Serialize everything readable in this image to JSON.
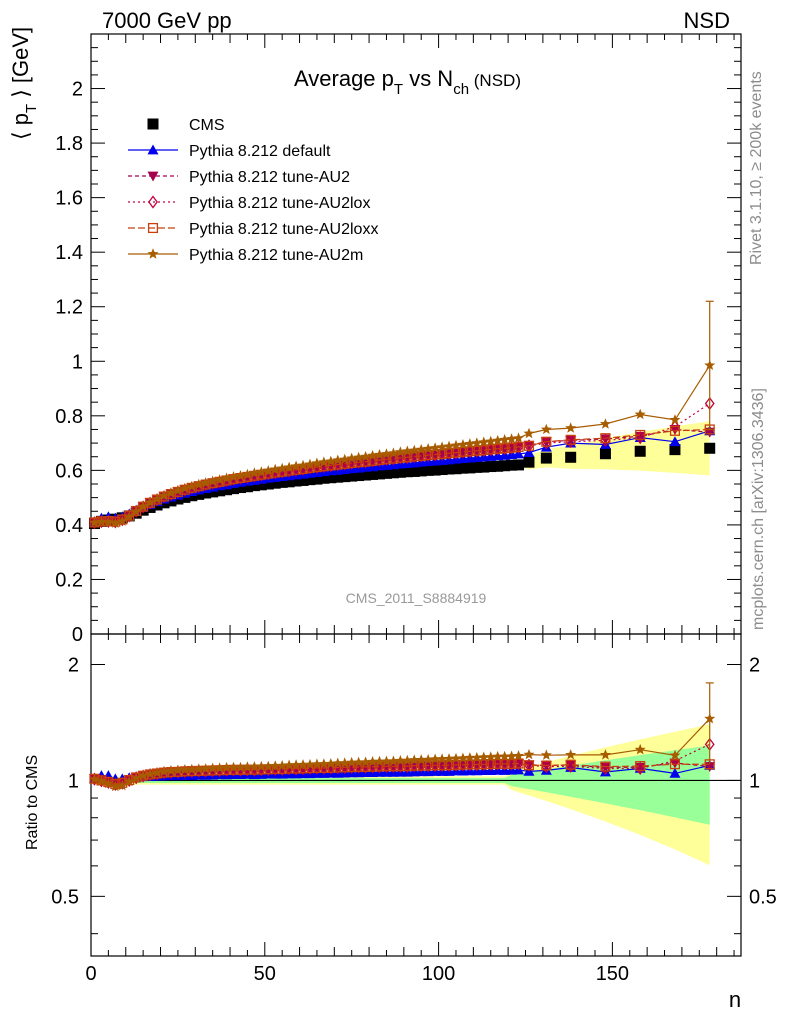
{
  "header": {
    "left": "7000 GeV pp",
    "right": "NSD"
  },
  "side_labels": {
    "top": "Rivet 3.1.10, ≥ 200k events",
    "bottom": "mcplots.cern.ch [arXiv:1306.3436]"
  },
  "watermark": "CMS_2011_S8884919",
  "chart_data": [
    {
      "type": "scatter",
      "title": {
        "main": "Average p",
        "sub1": "T",
        "mid": " vs N",
        "sub2": "ch",
        "tail": " (NSD)"
      },
      "ylabel": {
        "open": "⟨ p",
        "sub": "T",
        "close": " ⟩ [GeV]"
      },
      "xlim": [
        0,
        187
      ],
      "ylim": [
        0,
        2.2
      ],
      "yticks": [
        0,
        0.2,
        0.4,
        0.6,
        0.8,
        1,
        1.2,
        1.4,
        1.6,
        1.8,
        2
      ],
      "legend_position": "top-left",
      "series": [
        {
          "name": "CMS",
          "color": "#000000",
          "marker": "square",
          "x": [
            1,
            3,
            5,
            7,
            9,
            11,
            13,
            15,
            17,
            19,
            21,
            23,
            25,
            27,
            29,
            31,
            33,
            35,
            37,
            39,
            41,
            43,
            45,
            47,
            49,
            51,
            53,
            55,
            57,
            59,
            61,
            63,
            65,
            67,
            69,
            71,
            73,
            75,
            77,
            79,
            81,
            83,
            85,
            87,
            89,
            91,
            93,
            95,
            97,
            99,
            101,
            103,
            105,
            107,
            109,
            111,
            113,
            115,
            117,
            119,
            121,
            123,
            126,
            131,
            138,
            148,
            158,
            168,
            178
          ],
          "y": [
            0.405,
            0.413,
            0.418,
            0.421,
            0.426,
            0.433,
            0.443,
            0.454,
            0.464,
            0.473,
            0.481,
            0.488,
            0.495,
            0.501,
            0.507,
            0.512,
            0.517,
            0.521,
            0.525,
            0.529,
            0.533,
            0.537,
            0.54,
            0.544,
            0.547,
            0.55,
            0.553,
            0.556,
            0.558,
            0.561,
            0.563,
            0.566,
            0.568,
            0.571,
            0.573,
            0.575,
            0.577,
            0.579,
            0.581,
            0.583,
            0.585,
            0.587,
            0.589,
            0.591,
            0.593,
            0.595,
            0.596,
            0.598,
            0.6,
            0.601,
            0.603,
            0.605,
            0.606,
            0.608,
            0.609,
            0.611,
            0.612,
            0.614,
            0.615,
            0.617,
            0.619,
            0.62,
            0.63,
            0.645,
            0.648,
            0.661,
            0.67,
            0.676,
            0.681
          ]
        },
        {
          "name": "Pythia 8.212 default",
          "color": "#0000ee",
          "marker": "triangle-up",
          "x": [
            1,
            3,
            5,
            7,
            9,
            11,
            13,
            15,
            17,
            19,
            21,
            23,
            25,
            27,
            29,
            31,
            33,
            35,
            37,
            39,
            41,
            43,
            45,
            47,
            49,
            51,
            53,
            55,
            57,
            59,
            61,
            63,
            65,
            67,
            69,
            71,
            73,
            75,
            77,
            79,
            81,
            83,
            85,
            87,
            89,
            91,
            93,
            95,
            97,
            99,
            101,
            103,
            105,
            107,
            109,
            111,
            113,
            115,
            117,
            119,
            121,
            123,
            126,
            131,
            138,
            148,
            158,
            168,
            178
          ],
          "y": [
            0.41,
            0.425,
            0.43,
            0.425,
            0.43,
            0.44,
            0.452,
            0.464,
            0.475,
            0.485,
            0.494,
            0.502,
            0.509,
            0.516,
            0.522,
            0.528,
            0.533,
            0.538,
            0.543,
            0.547,
            0.552,
            0.556,
            0.56,
            0.563,
            0.567,
            0.571,
            0.574,
            0.577,
            0.58,
            0.583,
            0.586,
            0.589,
            0.592,
            0.595,
            0.598,
            0.6,
            0.603,
            0.606,
            0.608,
            0.611,
            0.613,
            0.616,
            0.618,
            0.62,
            0.623,
            0.625,
            0.627,
            0.63,
            0.632,
            0.634,
            0.636,
            0.638,
            0.641,
            0.643,
            0.645,
            0.647,
            0.649,
            0.651,
            0.653,
            0.655,
            0.658,
            0.66,
            0.665,
            0.685,
            0.7,
            0.695,
            0.72,
            0.705,
            0.745
          ]
        },
        {
          "name": "Pythia 8.212 tune-AU2",
          "color": "#a4004d",
          "marker": "triangle-down",
          "x": [
            1,
            3,
            5,
            7,
            9,
            11,
            13,
            15,
            17,
            19,
            21,
            23,
            25,
            27,
            29,
            31,
            33,
            35,
            37,
            39,
            41,
            43,
            45,
            47,
            49,
            51,
            53,
            55,
            57,
            59,
            61,
            63,
            65,
            67,
            69,
            71,
            73,
            75,
            77,
            79,
            81,
            83,
            85,
            87,
            89,
            91,
            93,
            95,
            97,
            99,
            101,
            103,
            105,
            107,
            109,
            111,
            113,
            115,
            117,
            119,
            121,
            123,
            126,
            131,
            138,
            148,
            158,
            168,
            178
          ],
          "y": [
            0.41,
            0.415,
            0.415,
            0.412,
            0.42,
            0.435,
            0.452,
            0.468,
            0.482,
            0.494,
            0.505,
            0.514,
            0.522,
            0.529,
            0.536,
            0.542,
            0.548,
            0.553,
            0.558,
            0.563,
            0.568,
            0.572,
            0.576,
            0.58,
            0.584,
            0.588,
            0.592,
            0.595,
            0.599,
            0.602,
            0.605,
            0.609,
            0.612,
            0.615,
            0.618,
            0.621,
            0.624,
            0.627,
            0.63,
            0.632,
            0.635,
            0.638,
            0.641,
            0.643,
            0.646,
            0.648,
            0.651,
            0.653,
            0.656,
            0.658,
            0.66,
            0.663,
            0.665,
            0.668,
            0.67,
            0.672,
            0.674,
            0.677,
            0.679,
            0.681,
            0.683,
            0.686,
            0.692,
            0.705,
            0.71,
            0.715,
            0.725,
            0.75,
            0.74
          ]
        },
        {
          "name": "Pythia 8.212 tune-AU2lox",
          "color": "#c4003d",
          "marker": "diamond-open",
          "x": [
            1,
            3,
            5,
            7,
            9,
            11,
            13,
            15,
            17,
            19,
            21,
            23,
            25,
            27,
            29,
            31,
            33,
            35,
            37,
            39,
            41,
            43,
            45,
            47,
            49,
            51,
            53,
            55,
            57,
            59,
            61,
            63,
            65,
            67,
            69,
            71,
            73,
            75,
            77,
            79,
            81,
            83,
            85,
            87,
            89,
            91,
            93,
            95,
            97,
            99,
            101,
            103,
            105,
            107,
            109,
            111,
            113,
            115,
            117,
            119,
            121,
            123,
            126,
            131,
            138,
            148,
            158,
            168,
            178
          ],
          "y": [
            0.408,
            0.412,
            0.413,
            0.411,
            0.419,
            0.433,
            0.45,
            0.466,
            0.48,
            0.492,
            0.503,
            0.512,
            0.52,
            0.528,
            0.535,
            0.541,
            0.547,
            0.552,
            0.557,
            0.562,
            0.567,
            0.571,
            0.575,
            0.579,
            0.583,
            0.587,
            0.591,
            0.594,
            0.598,
            0.601,
            0.604,
            0.608,
            0.611,
            0.614,
            0.617,
            0.62,
            0.623,
            0.626,
            0.629,
            0.631,
            0.634,
            0.637,
            0.64,
            0.642,
            0.645,
            0.647,
            0.65,
            0.652,
            0.655,
            0.657,
            0.659,
            0.662,
            0.664,
            0.667,
            0.669,
            0.671,
            0.673,
            0.676,
            0.678,
            0.68,
            0.682,
            0.685,
            0.69,
            0.7,
            0.705,
            0.71,
            0.72,
            0.76,
            0.845
          ]
        },
        {
          "name": "Pythia 8.212 tune-AU2loxx",
          "color": "#c8400a",
          "marker": "square-open",
          "x": [
            1,
            3,
            5,
            7,
            9,
            11,
            13,
            15,
            17,
            19,
            21,
            23,
            25,
            27,
            29,
            31,
            33,
            35,
            37,
            39,
            41,
            43,
            45,
            47,
            49,
            51,
            53,
            55,
            57,
            59,
            61,
            63,
            65,
            67,
            69,
            71,
            73,
            75,
            77,
            79,
            81,
            83,
            85,
            87,
            89,
            91,
            93,
            95,
            97,
            99,
            101,
            103,
            105,
            107,
            109,
            111,
            113,
            115,
            117,
            119,
            121,
            123,
            126,
            131,
            138,
            148,
            158,
            168,
            178
          ],
          "y": [
            0.409,
            0.413,
            0.414,
            0.412,
            0.42,
            0.434,
            0.451,
            0.467,
            0.481,
            0.493,
            0.504,
            0.513,
            0.521,
            0.529,
            0.536,
            0.542,
            0.548,
            0.553,
            0.558,
            0.563,
            0.568,
            0.572,
            0.576,
            0.58,
            0.584,
            0.588,
            0.592,
            0.595,
            0.599,
            0.602,
            0.605,
            0.609,
            0.612,
            0.615,
            0.618,
            0.621,
            0.624,
            0.627,
            0.63,
            0.632,
            0.635,
            0.638,
            0.641,
            0.643,
            0.646,
            0.648,
            0.651,
            0.653,
            0.656,
            0.658,
            0.66,
            0.663,
            0.665,
            0.668,
            0.67,
            0.672,
            0.674,
            0.677,
            0.679,
            0.681,
            0.683,
            0.686,
            0.69,
            0.705,
            0.712,
            0.718,
            0.73,
            0.745,
            0.75
          ]
        },
        {
          "name": "Pythia 8.212 tune-AU2m",
          "color": "#a85c00",
          "marker": "star",
          "x": [
            1,
            3,
            5,
            7,
            9,
            11,
            13,
            15,
            17,
            19,
            21,
            23,
            25,
            27,
            29,
            31,
            33,
            35,
            37,
            39,
            41,
            43,
            45,
            47,
            49,
            51,
            53,
            55,
            57,
            59,
            61,
            63,
            65,
            67,
            69,
            71,
            73,
            75,
            77,
            79,
            81,
            83,
            85,
            87,
            89,
            91,
            93,
            95,
            97,
            99,
            101,
            103,
            105,
            107,
            109,
            111,
            113,
            115,
            117,
            119,
            121,
            123,
            126,
            131,
            138,
            148,
            158,
            168,
            178
          ],
          "y": [
            0.408,
            0.411,
            0.41,
            0.406,
            0.413,
            0.43,
            0.449,
            0.467,
            0.482,
            0.495,
            0.507,
            0.517,
            0.526,
            0.534,
            0.541,
            0.548,
            0.554,
            0.56,
            0.565,
            0.571,
            0.576,
            0.58,
            0.585,
            0.59,
            0.594,
            0.598,
            0.603,
            0.607,
            0.611,
            0.615,
            0.618,
            0.622,
            0.626,
            0.63,
            0.633,
            0.637,
            0.64,
            0.644,
            0.647,
            0.65,
            0.654,
            0.657,
            0.66,
            0.663,
            0.667,
            0.67,
            0.673,
            0.676,
            0.679,
            0.682,
            0.685,
            0.688,
            0.691,
            0.694,
            0.697,
            0.7,
            0.703,
            0.706,
            0.709,
            0.712,
            0.715,
            0.718,
            0.735,
            0.75,
            0.755,
            0.77,
            0.805,
            0.785,
            0.985
          ],
          "yerr_last": [
            0.75,
            1.22
          ]
        }
      ]
    },
    {
      "type": "scatter",
      "ylabel": "Ratio to CMS",
      "xlabel": "n",
      "xlim": [
        0,
        187
      ],
      "ylim": [
        0.35,
        2.4
      ],
      "yscale": "log",
      "xticks": [
        0,
        50,
        100,
        150
      ],
      "yticks": [
        0.5,
        1,
        2
      ],
      "reference_line": 1,
      "uncertainty_band_inner_color": "#99ff99",
      "uncertainty_band_outer_color": "#ffff99"
    }
  ]
}
